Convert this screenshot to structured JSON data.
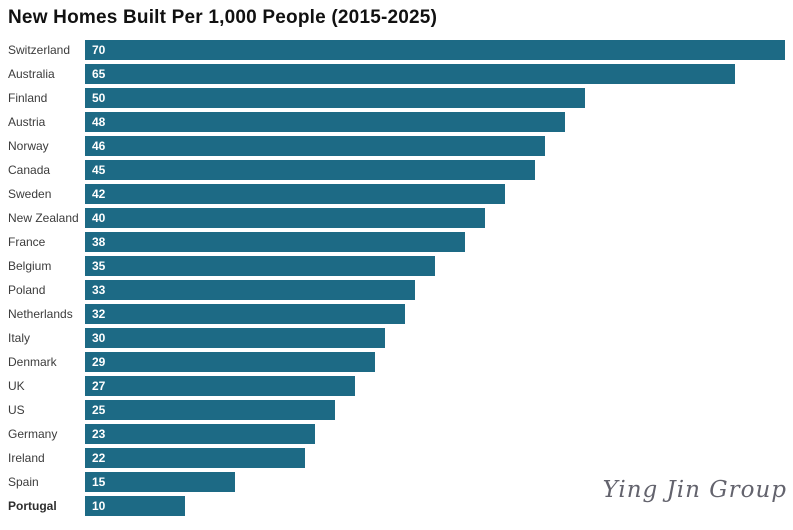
{
  "chart_data": {
    "type": "bar",
    "orientation": "horizontal",
    "title": "New Homes Built Per 1,000 People (2015-2025)",
    "categories": [
      "Switzerland",
      "Australia",
      "Finland",
      "Austria",
      "Norway",
      "Canada",
      "Sweden",
      "New Zealand",
      "France",
      "Belgium",
      "Poland",
      "Netherlands",
      "Italy",
      "Denmark",
      "UK",
      "US",
      "Germany",
      "Ireland",
      "Spain",
      "Portugal"
    ],
    "values": [
      70,
      65,
      50,
      48,
      46,
      45,
      42,
      40,
      38,
      35,
      33,
      32,
      30,
      29,
      27,
      25,
      23,
      22,
      15,
      10
    ],
    "xlabel": "",
    "ylabel": "",
    "xlim": [
      0,
      70
    ],
    "grid": false,
    "legend": false,
    "value_labels_inside_bars": true,
    "highlight_category": "Portugal",
    "bar_color": "#1d6a85",
    "value_label_color": "#ffffff",
    "category_label_color": "#3c3c3c",
    "title_color": "#111111"
  },
  "watermark": {
    "text": "Ying Jin Group",
    "color": "#63636d"
  }
}
